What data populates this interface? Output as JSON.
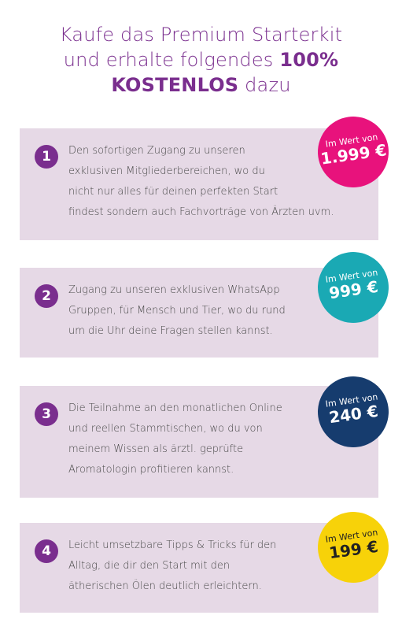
{
  "headline": {
    "line1": "Kaufe das Premium Starterkit",
    "line2_pre": "und erhalte folgendes ",
    "line2_bold": "100%",
    "line3_bold": "KOSTENLOS",
    "line3_post": " dazu"
  },
  "items": [
    {
      "number": "1",
      "lines": [
        "Den sofortigen Zugang zu unseren",
        "exklusiven Mitgliederbereichen, wo du",
        "nicht nur alles für deinen perfekten Start",
        "findest sondern auch Fachvorträge von Ärzten uvm."
      ],
      "badge_label": "Im Wert von",
      "badge_price": "1.999 €",
      "badge_color": "#e8127c",
      "badge_text_color": "#ffffff"
    },
    {
      "number": "2",
      "lines": [
        "Zugang zu unseren exklusiven WhatsApp",
        "Gruppen, für Mensch und Tier, wo du rund",
        "um die Uhr deine Fragen stellen kannst."
      ],
      "badge_label": "Im Wert von",
      "badge_price": "999 €",
      "badge_color": "#1aa9b4",
      "badge_text_color": "#ffffff"
    },
    {
      "number": "3",
      "lines": [
        "Die Teilnahme an den monatlichen Online",
        "und reellen Stammtischen, wo du von",
        "meinem Wissen als ärztl. geprüfte",
        "Aromatologin profitieren kannst."
      ],
      "badge_label": "Im Wert von",
      "badge_price": "240 €",
      "badge_color": "#163c6e",
      "badge_text_color": "#ffffff"
    },
    {
      "number": "4",
      "lines": [
        "Leicht umsetzbare Tipps & Tricks für den",
        "Alltag, die dir den Start mit den",
        "ätherischen Ölen deutlich erleichtern."
      ],
      "badge_label": "Im Wert von",
      "badge_price": "199 €",
      "badge_color": "#f7d209",
      "badge_text_color": "#222222"
    }
  ]
}
